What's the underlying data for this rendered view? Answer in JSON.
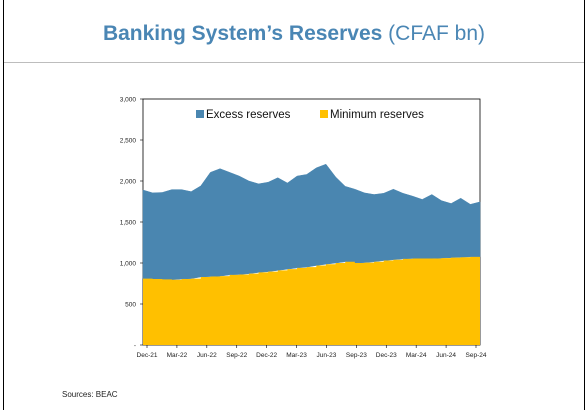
{
  "slide": {
    "title_bold": "Banking System’s Reserves",
    "title_unit": "(CFAF bn)",
    "source": "Sources: BEAC"
  },
  "chart_data": {
    "type": "area",
    "stacked": true,
    "title": "Banking System’s Reserves (CFAF bn)",
    "xlabel": "",
    "ylabel": "",
    "ylim": [
      0,
      3000
    ],
    "yticks": [
      0,
      500,
      1000,
      1500,
      2000,
      2500,
      3000
    ],
    "ytick_labels": [
      "-",
      "500",
      "1,000",
      "1,500",
      "2,000",
      "2,500",
      "3,000"
    ],
    "xtick_labels": [
      "Dec-21",
      "Mar-22",
      "Jun-22",
      "Sep-22",
      "Dec-22",
      "Mar-23",
      "Jun-23",
      "Sep-23",
      "Dec-23",
      "Mar-24",
      "Jun-24",
      "Sep-24"
    ],
    "legend": {
      "placement": "top",
      "entries": [
        "Excess reserves",
        "Minimum reserves"
      ]
    },
    "colors": {
      "excess": "#4a86b0",
      "minimum": "#ffc000"
    },
    "x": [
      "Dec-21",
      "Jan-22",
      "Feb-22",
      "Mar-22",
      "Apr-22",
      "May-22",
      "Jun-22",
      "Jul-22",
      "Aug-22",
      "Sep-22",
      "Oct-22",
      "Nov-22",
      "Dec-22",
      "Jan-23",
      "Feb-23",
      "Mar-23",
      "Apr-23",
      "May-23",
      "Jun-23",
      "Jul-23",
      "Aug-23",
      "Sep-23",
      "Oct-23",
      "Nov-23",
      "Dec-23",
      "Jan-24",
      "Feb-24",
      "Mar-24",
      "Apr-24",
      "May-24",
      "Jun-24",
      "Jul-24",
      "Aug-24",
      "Sep-24",
      "Oct-24",
      "Nov-24"
    ],
    "series": [
      {
        "name": "Minimum reserves",
        "values": [
          810,
          805,
          800,
          795,
          805,
          810,
          830,
          835,
          840,
          855,
          860,
          870,
          885,
          895,
          910,
          925,
          940,
          950,
          970,
          985,
          1000,
          1015,
          1000,
          1005,
          1015,
          1030,
          1040,
          1050,
          1055,
          1055,
          1055,
          1060,
          1065,
          1070,
          1075,
          1075
        ]
      },
      {
        "name": "Excess reserves",
        "values": [
          1080,
          1050,
          1060,
          1100,
          1090,
          1060,
          1110,
          1270,
          1310,
          1250,
          1200,
          1130,
          1080,
          1090,
          1130,
          1050,
          1120,
          1130,
          1190,
          1220,
          1050,
          920,
          900,
          850,
          820,
          820,
          860,
          800,
          760,
          720,
          780,
          700,
          660,
          720,
          640,
          670
        ]
      }
    ]
  }
}
